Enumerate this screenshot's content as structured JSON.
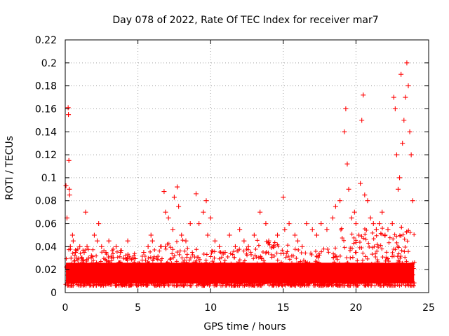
{
  "chart_data": {
    "type": "scatter",
    "title": "Day 078 of 2022, Rate Of TEC Index for receiver mar7",
    "xlabel": "GPS time / hours",
    "ylabel": "ROTI / TECUs",
    "xlim": [
      0,
      25
    ],
    "ylim": [
      0,
      0.22
    ],
    "xticks": [
      0,
      5,
      10,
      15,
      20,
      25
    ],
    "xtick_labels": [
      "0",
      "5",
      "10",
      "15",
      "20",
      "25"
    ],
    "yticks": [
      0,
      0.02,
      0.04,
      0.06,
      0.08,
      0.1,
      0.12,
      0.14,
      0.16,
      0.18,
      0.2,
      0.22
    ],
    "ytick_labels": [
      "0",
      "0.02",
      "0.04",
      "0.06",
      "0.08",
      "0.1",
      "0.12",
      "0.14",
      "0.16",
      "0.18",
      "0.2",
      "0.22"
    ],
    "grid": true,
    "marker": "+",
    "marker_color": "#ff0000",
    "series": [
      {
        "name": "ROTI",
        "x": [
          0.05,
          0.12,
          0.2,
          0.22,
          0.25,
          0.28,
          0.3,
          0.35,
          0.4,
          0.45,
          0.5,
          0.55,
          0.6,
          0.7,
          0.8,
          0.9,
          1.0,
          1.1,
          1.2,
          1.3,
          1.4,
          1.5,
          1.6,
          1.8,
          2.0,
          2.2,
          2.3,
          2.5,
          2.8,
          3.0,
          3.2,
          3.5,
          3.8,
          4.0,
          4.3,
          4.6,
          5.0,
          5.4,
          5.7,
          5.9,
          6.0,
          6.3,
          6.6,
          6.8,
          6.9,
          7.1,
          7.4,
          7.5,
          7.7,
          7.8,
          8.0,
          8.3,
          8.6,
          9.0,
          9.2,
          9.5,
          9.7,
          9.8,
          10.0,
          10.3,
          10.6,
          11.0,
          11.3,
          11.7,
          12.0,
          12.3,
          12.6,
          13.0,
          13.4,
          13.5,
          13.8,
          14.0,
          14.3,
          14.6,
          15.0,
          15.1,
          15.4,
          15.8,
          16.0,
          16.3,
          16.6,
          17.0,
          17.3,
          17.6,
          18.0,
          18.4,
          18.6,
          18.9,
          19.2,
          19.3,
          19.4,
          19.5,
          19.7,
          19.9,
          20.0,
          20.2,
          20.3,
          20.4,
          20.5,
          20.6,
          20.8,
          21.0,
          21.2,
          21.4,
          21.6,
          21.8,
          22.0,
          22.2,
          22.5,
          22.6,
          22.7,
          22.8,
          22.9,
          23.0,
          23.1,
          23.2,
          23.3,
          23.4,
          23.5,
          23.6,
          23.7,
          23.8,
          23.9
        ],
        "y": [
          0.093,
          0.065,
          0.161,
          0.155,
          0.115,
          0.09,
          0.085,
          0.04,
          0.03,
          0.025,
          0.05,
          0.045,
          0.02,
          0.035,
          0.03,
          0.025,
          0.04,
          0.03,
          0.028,
          0.035,
          0.07,
          0.04,
          0.03,
          0.032,
          0.05,
          0.045,
          0.06,
          0.04,
          0.035,
          0.045,
          0.03,
          0.04,
          0.035,
          0.03,
          0.045,
          0.03,
          0.025,
          0.035,
          0.04,
          0.05,
          0.045,
          0.03,
          0.04,
          0.088,
          0.07,
          0.065,
          0.055,
          0.083,
          0.092,
          0.075,
          0.05,
          0.045,
          0.06,
          0.086,
          0.06,
          0.07,
          0.08,
          0.05,
          0.065,
          0.045,
          0.04,
          0.035,
          0.05,
          0.04,
          0.055,
          0.045,
          0.04,
          0.05,
          0.07,
          0.03,
          0.06,
          0.045,
          0.04,
          0.05,
          0.083,
          0.055,
          0.06,
          0.05,
          0.045,
          0.04,
          0.06,
          0.055,
          0.05,
          0.06,
          0.055,
          0.065,
          0.075,
          0.08,
          0.14,
          0.16,
          0.112,
          0.09,
          0.065,
          0.07,
          0.06,
          0.05,
          0.095,
          0.15,
          0.172,
          0.085,
          0.08,
          0.065,
          0.06,
          0.055,
          0.06,
          0.07,
          0.05,
          0.055,
          0.06,
          0.17,
          0.16,
          0.12,
          0.09,
          0.1,
          0.19,
          0.13,
          0.15,
          0.17,
          0.2,
          0.18,
          0.14,
          0.12,
          0.08
        ]
      }
    ]
  }
}
